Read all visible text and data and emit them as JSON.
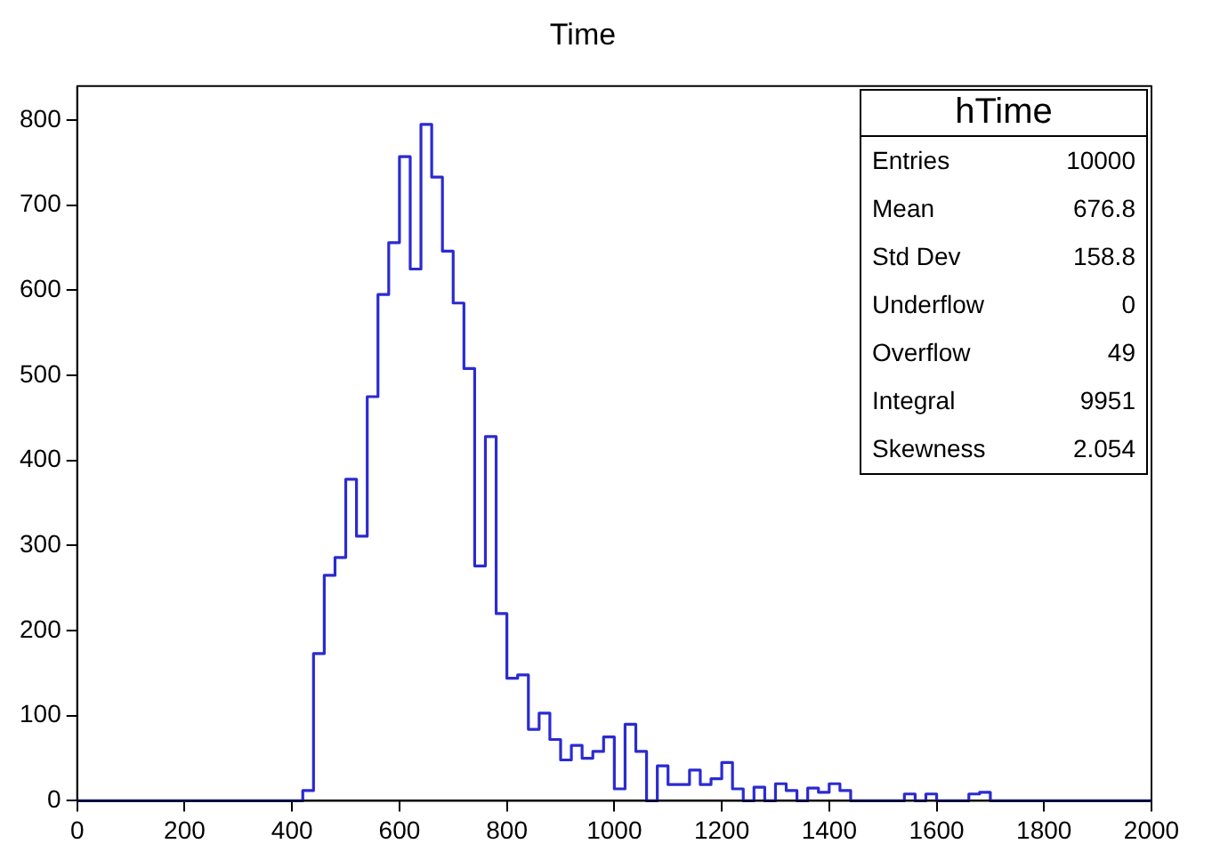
{
  "chart_data": {
    "type": "histogram",
    "title": "Time",
    "bins": [
      0,
      20,
      40,
      60,
      80,
      100,
      120,
      140,
      160,
      180,
      200,
      220,
      240,
      260,
      280,
      300,
      320,
      340,
      360,
      380,
      400,
      420,
      440,
      460,
      480,
      500,
      520,
      540,
      560,
      580,
      600,
      620,
      640,
      660,
      680,
      700,
      720,
      740,
      760,
      780,
      800,
      820,
      840,
      860,
      880,
      900,
      920,
      940,
      960,
      980,
      1000,
      1020,
      1040,
      1060,
      1080,
      1100,
      1120,
      1140,
      1160,
      1180,
      1200,
      1220,
      1240,
      1260,
      1280,
      1300,
      1320,
      1340,
      1360,
      1380,
      1400,
      1420,
      1440,
      1460,
      1480,
      1500,
      1520,
      1540,
      1560,
      1580,
      1600,
      1620,
      1640,
      1660,
      1680,
      1700,
      1720,
      1740,
      1760,
      1780,
      1800,
      1820,
      1840,
      1860,
      1880,
      1900,
      1920,
      1940,
      1960,
      1980,
      2000
    ],
    "values": [
      0,
      0,
      0,
      0,
      0,
      0,
      0,
      0,
      0,
      0,
      0,
      0,
      0,
      0,
      0,
      0,
      0,
      0,
      0,
      0,
      0,
      12,
      173,
      265,
      286,
      378,
      311,
      475,
      595,
      656,
      757,
      625,
      795,
      733,
      646,
      585,
      508,
      276,
      428,
      220,
      144,
      148,
      84,
      103,
      72,
      48,
      65,
      50,
      58,
      75,
      14,
      90,
      58,
      0,
      41,
      19,
      19,
      36,
      19,
      26,
      45,
      14,
      0,
      16,
      0,
      20,
      12,
      0,
      15,
      10,
      20,
      12,
      0,
      0,
      0,
      0,
      0,
      8,
      0,
      8,
      0,
      0,
      0,
      8,
      10,
      0,
      0,
      0,
      0,
      0,
      0,
      0,
      0,
      0,
      0,
      0,
      0,
      0,
      0,
      0
    ],
    "color": "#2b2bd0",
    "xlim": [
      0,
      2000
    ],
    "xticks": [
      0,
      200,
      400,
      600,
      800,
      1000,
      1200,
      1400,
      1600,
      1800,
      2000
    ],
    "ylim": [
      0,
      840
    ],
    "yticks": [
      0,
      100,
      200,
      300,
      400,
      500,
      600,
      700,
      800
    ],
    "grid": false,
    "legend": false,
    "annotations": [
      "hTime",
      "Entries",
      "10000",
      "Mean",
      "676.8",
      "Std Dev",
      "158.8",
      "Underflow",
      "0",
      "Overflow",
      "49",
      "Integral",
      "9951",
      "Skewness",
      "2.054"
    ]
  }
}
